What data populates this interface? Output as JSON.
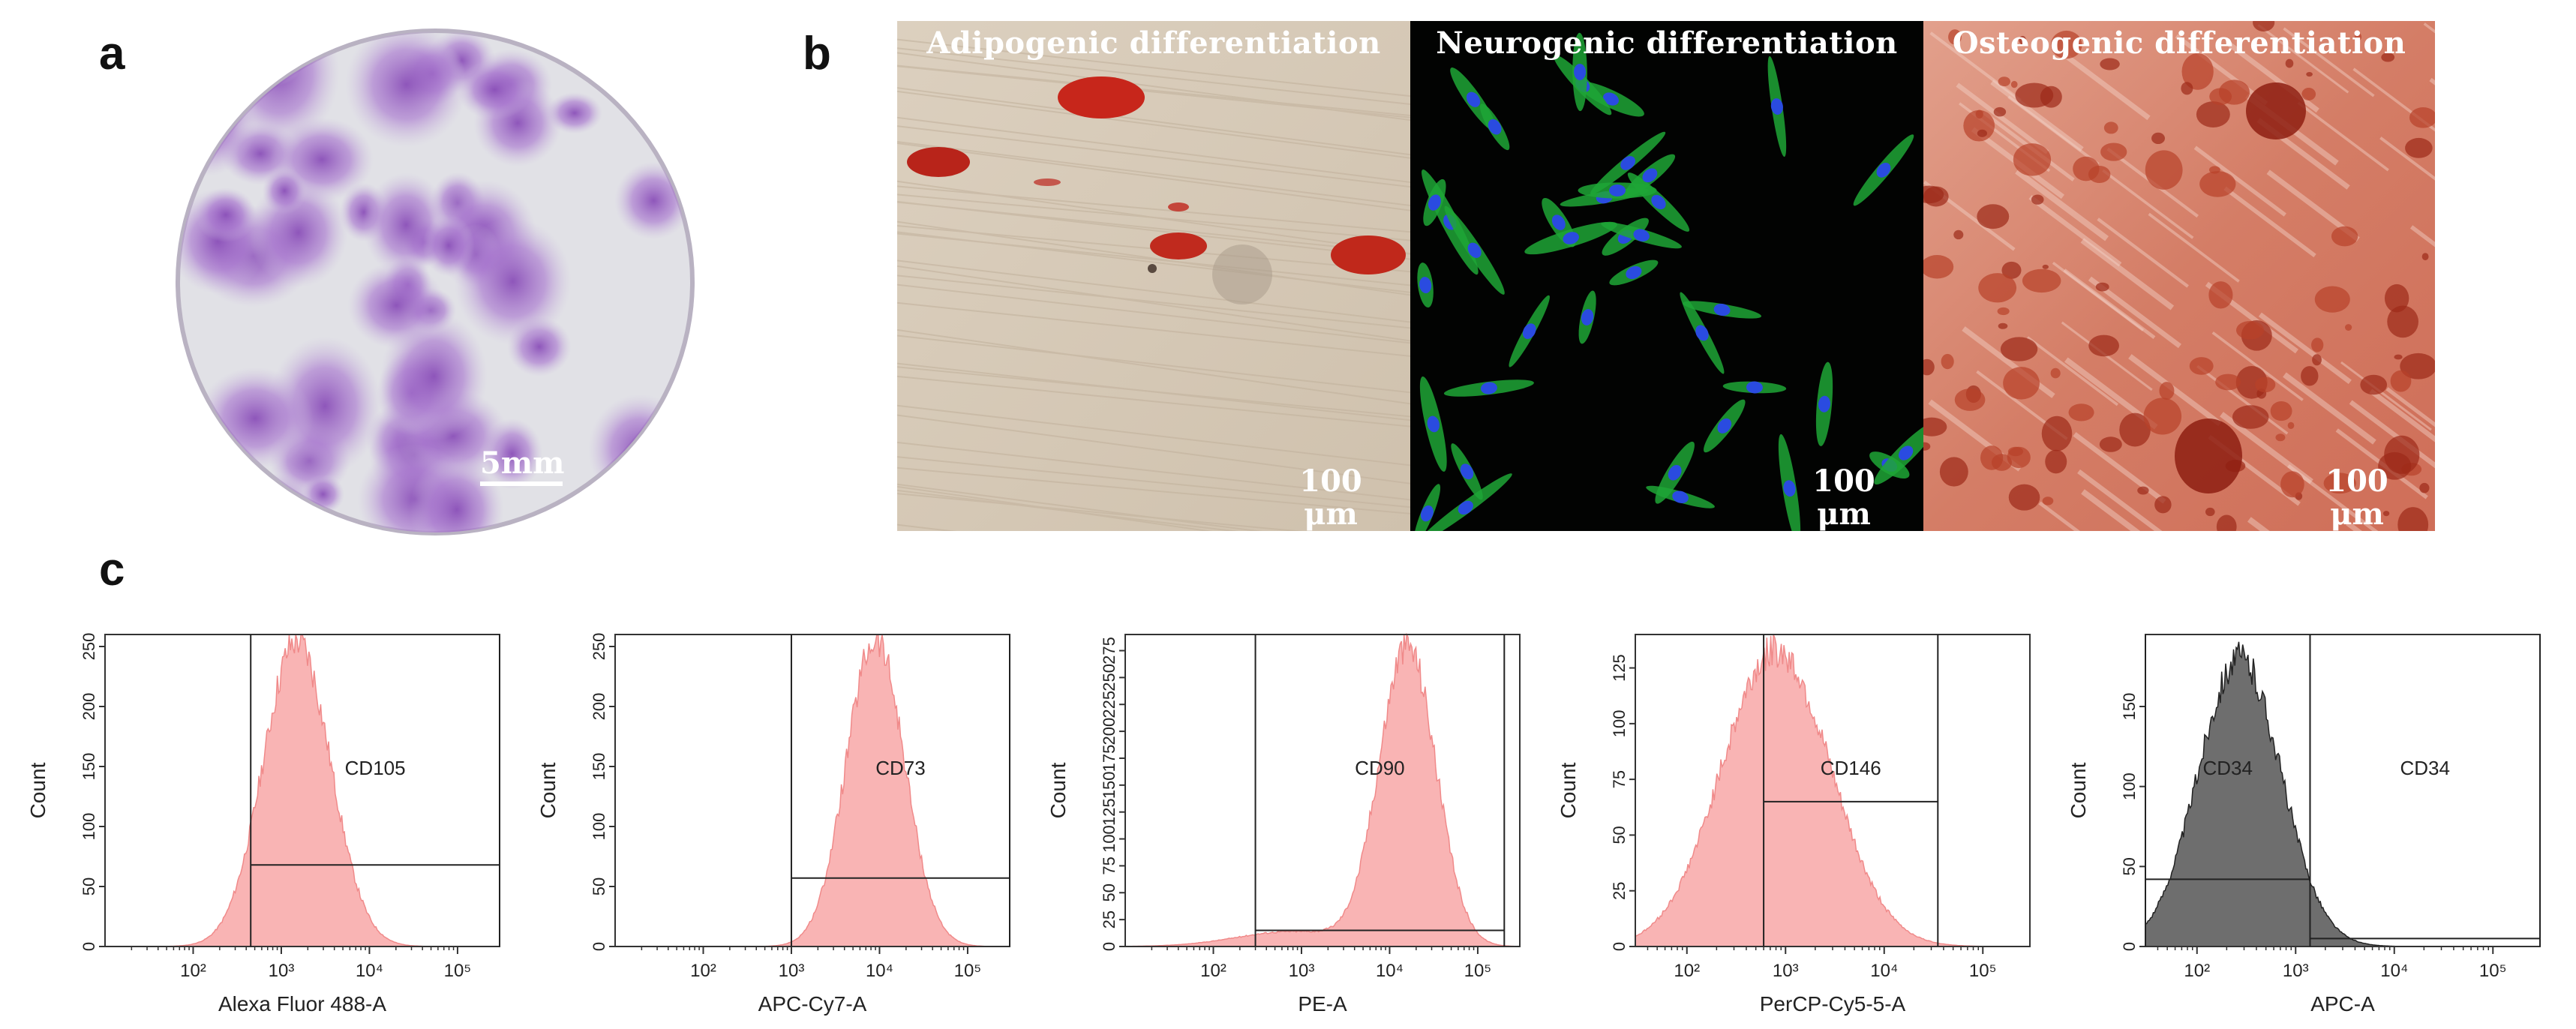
{
  "panels": {
    "a": "a",
    "b": "b",
    "c": "c"
  },
  "plate": {
    "scale_label": "5mm"
  },
  "micrographs": [
    {
      "title": "Adipogenic differentiation",
      "scale_label": "100 μm"
    },
    {
      "title": "Neurogenic differentiation",
      "scale_label": "100 μm"
    },
    {
      "title": "Osteogenic differentiation",
      "scale_label": "100 μm"
    }
  ],
  "chart_data": [
    {
      "type": "area",
      "xlabel": "Alexa Fluor 488-A",
      "ylabel": "Count",
      "xscale": "log",
      "xlim": [
        10,
        300000
      ],
      "ylim": [
        0,
        260
      ],
      "yticks": [
        0,
        50,
        100,
        150,
        200,
        250
      ],
      "yticklabels": [
        "0",
        "50",
        "100",
        "150",
        "200",
        "250"
      ],
      "xticklabels": [
        "10²",
        "10³",
        "10⁴",
        "10⁵"
      ],
      "gate_label": "CD105",
      "gate": {
        "x_start": 450,
        "x_end": 300000,
        "y": 68
      },
      "fill": "#f9b4b4",
      "peak_x": 1500,
      "peak_y": 255,
      "width_decades": 0.38,
      "series": [
        {
          "values": []
        }
      ]
    },
    {
      "type": "area",
      "xlabel": "APC-Cy7-A",
      "ylabel": "Count",
      "xscale": "log",
      "xlim": [
        10,
        300000
      ],
      "ylim": [
        0,
        260
      ],
      "yticks": [
        0,
        50,
        100,
        150,
        200,
        250
      ],
      "yticklabels": [
        "0",
        "50",
        "100",
        "150",
        "200",
        "250"
      ],
      "xticklabels": [
        "10²",
        "10³",
        "10⁴",
        "10⁵"
      ],
      "gate_label": "CD73",
      "gate": {
        "x_start": 1000,
        "x_end": 300000,
        "y": 57
      },
      "fill": "#f9b4b4",
      "peak_x": 9000,
      "peak_y": 255,
      "width_decades": 0.33,
      "series": [
        {
          "values": []
        }
      ]
    },
    {
      "type": "area",
      "xlabel": "PE-A",
      "ylabel": "Count",
      "xscale": "log",
      "xlim": [
        10,
        300000
      ],
      "ylim": [
        0,
        290
      ],
      "yticks": [
        0,
        25,
        50,
        75,
        100,
        125,
        150,
        175,
        200,
        225,
        250,
        275
      ],
      "yticklabels": [
        "0",
        "25",
        "50",
        "75",
        "100",
        "125",
        "150",
        "175",
        "200",
        "225",
        "250",
        "275"
      ],
      "xticklabels": [
        "10²",
        "10³",
        "10⁴",
        "10⁵"
      ],
      "gate_label": "CD90",
      "gate": {
        "x_start": 300,
        "x_end": 200000,
        "y": 15
      },
      "fill": "#f9b4b4",
      "peak_x": 16000,
      "peak_y": 280,
      "width_decades": 0.32,
      "series": [
        {
          "values": []
        }
      ]
    },
    {
      "type": "area",
      "xlabel": "PerCP-Cy5-5-A",
      "ylabel": "Count",
      "xscale": "log",
      "xlim": [
        30,
        300000
      ],
      "ylim": [
        0,
        140
      ],
      "yticks": [
        0,
        25,
        50,
        75,
        100,
        125
      ],
      "yticklabels": [
        "0",
        "25",
        "50",
        "75",
        "100",
        "125"
      ],
      "xticklabels": [
        "10²",
        "10³",
        "10⁴",
        "10⁵"
      ],
      "gate_label": "CD146",
      "gate": {
        "x_start": 600,
        "x_end": 35000,
        "y": 65
      },
      "fill": "#f9b4b4",
      "peak_x": 800,
      "peak_y": 133,
      "width_decades": 0.55,
      "series": [
        {
          "values": []
        }
      ]
    },
    {
      "type": "area",
      "xlabel": "APC-A",
      "ylabel": "Count",
      "xscale": "log",
      "xlim": [
        30,
        300000
      ],
      "ylim": [
        0,
        195
      ],
      "yticks": [
        0,
        50,
        100,
        150
      ],
      "yticklabels": [
        "0",
        "50",
        "100",
        "150"
      ],
      "xticklabels": [
        "10²",
        "10³",
        "10⁴",
        "10⁵"
      ],
      "gate_label": "CD34",
      "gate_label_left": "CD34",
      "gate": {
        "x_start": 1400,
        "x_end": 300000,
        "y": 5
      },
      "gate_left": {
        "x_start": 30,
        "x_end": 1400,
        "y": 42
      },
      "fill": "#6e6e6e",
      "peak_x": 270,
      "peak_y": 180,
      "width_decades": 0.42,
      "series": [
        {
          "values": []
        }
      ]
    }
  ]
}
